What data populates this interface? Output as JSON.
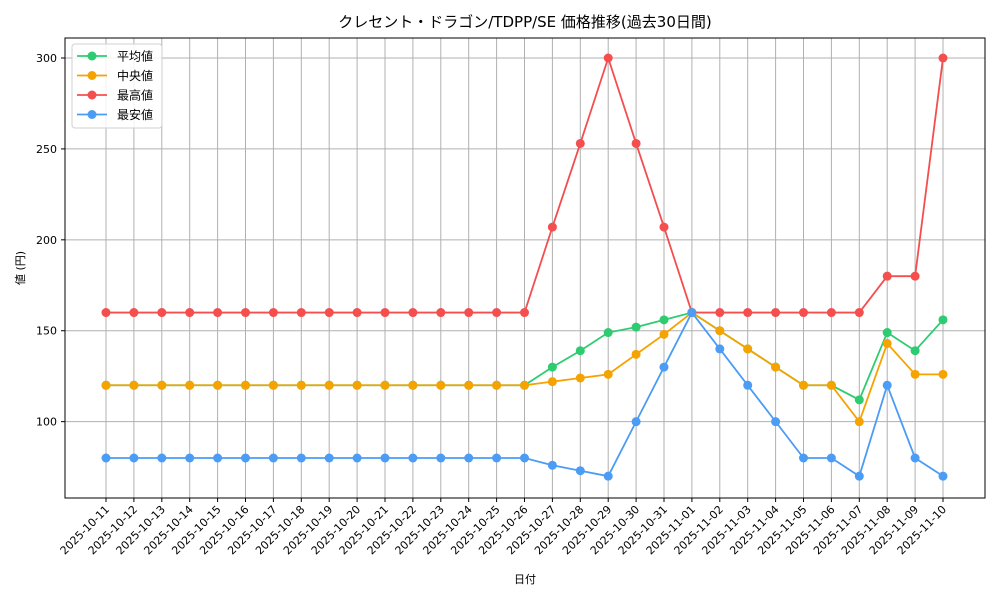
{
  "chart_data": {
    "type": "line",
    "title": "クレセント・ドラゴン/TDPP/SE 価格推移(過去30日間)",
    "xlabel": "日付",
    "ylabel": "値 (円)",
    "ylim": [
      58,
      311
    ],
    "yticks": [
      100,
      150,
      200,
      250,
      300
    ],
    "grid": true,
    "legend_position": "upper left",
    "categories": [
      "2025-10-11",
      "2025-10-12",
      "2025-10-13",
      "2025-10-14",
      "2025-10-15",
      "2025-10-16",
      "2025-10-17",
      "2025-10-18",
      "2025-10-19",
      "2025-10-20",
      "2025-10-21",
      "2025-10-22",
      "2025-10-23",
      "2025-10-24",
      "2025-10-25",
      "2025-10-26",
      "2025-10-27",
      "2025-10-28",
      "2025-10-29",
      "2025-10-30",
      "2025-10-31",
      "2025-11-01",
      "2025-11-02",
      "2025-11-03",
      "2025-11-04",
      "2025-11-05",
      "2025-11-06",
      "2025-11-07",
      "2025-11-08",
      "2025-11-09",
      "2025-11-10"
    ],
    "series": [
      {
        "name": "平均値",
        "color": "#2ecc71",
        "values": [
          120,
          120,
          120,
          120,
          120,
          120,
          120,
          120,
          120,
          120,
          120,
          120,
          120,
          120,
          120,
          120,
          130,
          139,
          149,
          152,
          156,
          160,
          150,
          140,
          130,
          120,
          120,
          112,
          149,
          139,
          156
        ]
      },
      {
        "name": "中央値",
        "color": "#f5a300",
        "values": [
          120,
          120,
          120,
          120,
          120,
          120,
          120,
          120,
          120,
          120,
          120,
          120,
          120,
          120,
          120,
          120,
          122,
          124,
          126,
          137,
          148,
          160,
          150,
          140,
          130,
          120,
          120,
          100,
          143,
          126,
          126
        ]
      },
      {
        "name": "最高値",
        "color": "#f44e4e",
        "values": [
          160,
          160,
          160,
          160,
          160,
          160,
          160,
          160,
          160,
          160,
          160,
          160,
          160,
          160,
          160,
          160,
          207,
          253,
          300,
          253,
          207,
          160,
          160,
          160,
          160,
          160,
          160,
          160,
          180,
          180,
          300
        ]
      },
      {
        "name": "最安値",
        "color": "#4b9cf5",
        "values": [
          80,
          80,
          80,
          80,
          80,
          80,
          80,
          80,
          80,
          80,
          80,
          80,
          80,
          80,
          80,
          80,
          76,
          73,
          70,
          100,
          130,
          160,
          140,
          120,
          100,
          80,
          80,
          70,
          120,
          80,
          70
        ]
      }
    ]
  }
}
